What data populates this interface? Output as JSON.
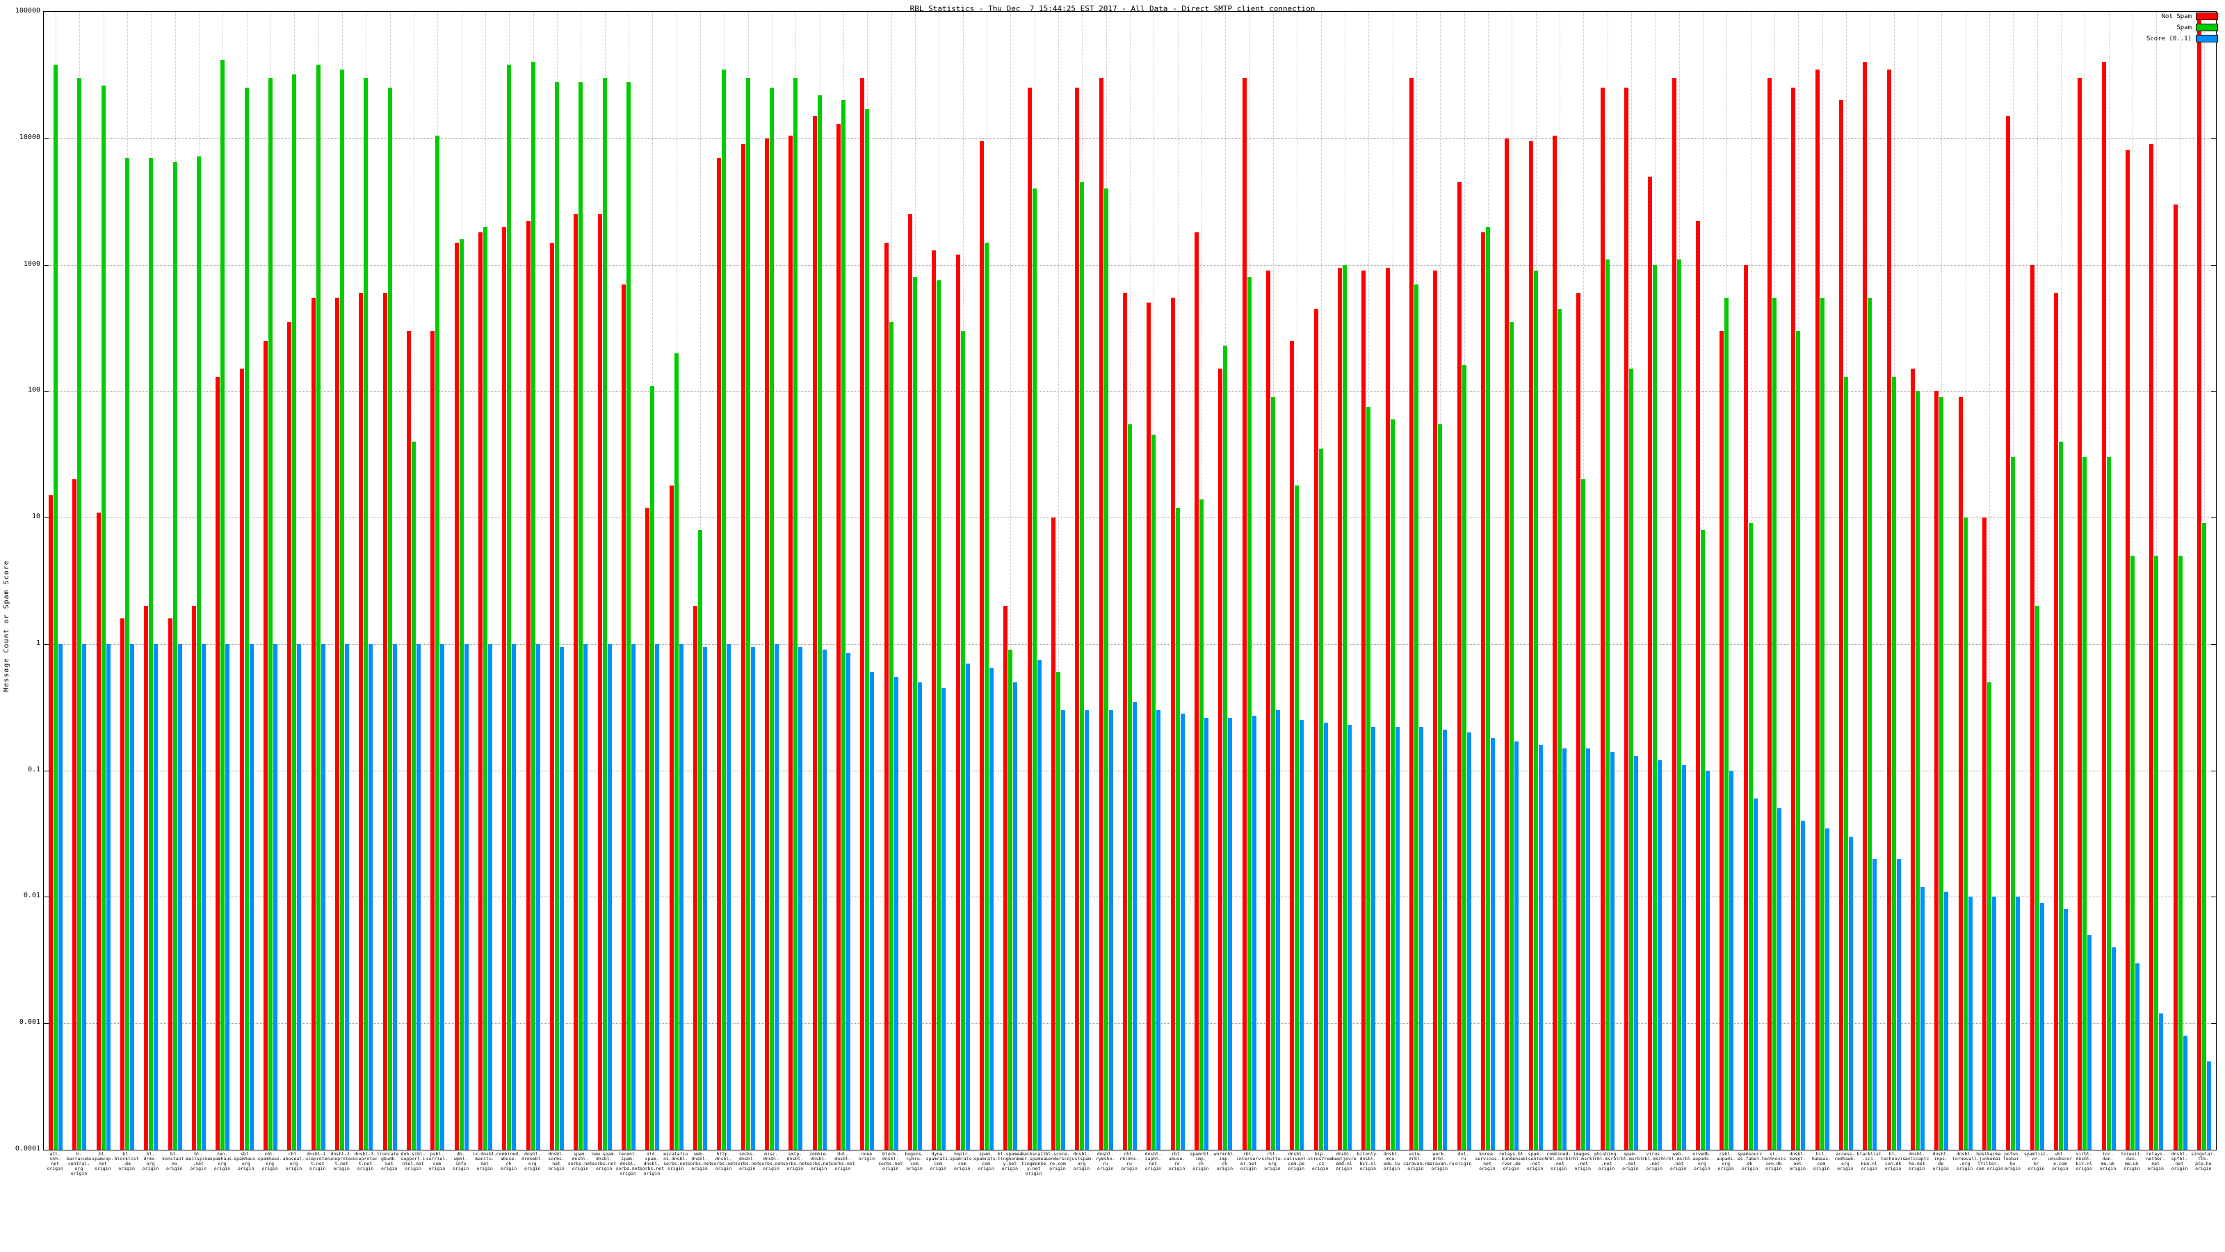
{
  "chart_data": {
    "type": "bar",
    "title": "RBL Statistics - Thu Dec  7 15:44:25 EST 2017 - All Data - Direct SMTP client connection",
    "ylabel": "Message Count or Spam Score",
    "yscale": "log",
    "ylim": [
      0.0001,
      100000
    ],
    "y_ticks": [
      "100000",
      "10000",
      "1000",
      "100",
      "10",
      "1",
      "0.1",
      "0.01",
      "0.001",
      "0.0001"
    ],
    "grid": true,
    "legend_position": "top-right",
    "colors": {
      "not_spam": "#ff0000",
      "spam": "#00cc00",
      "score": "#0090ff"
    },
    "legend": [
      {
        "label": "Not Spam",
        "color": "#ff0000"
      },
      {
        "label": "Spam",
        "color": "#00cc00"
      },
      {
        "label": "Score (0..1)",
        "color": "#0090ff"
      }
    ],
    "series_order": [
      "not_spam",
      "spam",
      "score"
    ],
    "groups": [
      {
        "label": [
          "all.",
          "s5h.",
          "net",
          "origin"
        ],
        "not_spam": 15,
        "spam": 38000,
        "score": 1
      },
      {
        "label": [
          "b.",
          "barracuda",
          "central.",
          "org",
          "origin"
        ],
        "not_spam": 20,
        "spam": 30000,
        "score": 1
      },
      {
        "label": [
          "bl.",
          "spamcop.",
          "net",
          "origin"
        ],
        "not_spam": 11,
        "spam": 26000,
        "score": 1
      },
      {
        "label": [
          "bl.",
          "blocklist",
          ".de",
          "origin"
        ],
        "not_spam": 1.6,
        "spam": 7000,
        "score": 1
      },
      {
        "label": [
          "bl.",
          "drmx.",
          "org",
          "origin"
        ],
        "not_spam": 2,
        "spam": 7000,
        "score": 1
      },
      {
        "label": [
          "bl.",
          "konstant.",
          "no",
          "origin"
        ],
        "not_spam": 1.6,
        "spam": 6500,
        "score": 1
      },
      {
        "label": [
          "bl.",
          "mailspike",
          ".net",
          "origin"
        ],
        "not_spam": 2,
        "spam": 7200,
        "score": 1
      },
      {
        "label": [
          "zen.",
          "spamhaus.",
          "org",
          "origin"
        ],
        "not_spam": 130,
        "spam": 42000,
        "score": 1
      },
      {
        "label": [
          "sbl.",
          "spamhaus.",
          "org",
          "origin"
        ],
        "not_spam": 150,
        "spam": 25000,
        "score": 1
      },
      {
        "label": [
          "xbl.",
          "spamhaus.",
          "org",
          "origin"
        ],
        "not_spam": 250,
        "spam": 30000,
        "score": 1
      },
      {
        "label": [
          "cbl.",
          "abuseat.",
          "org",
          "origin"
        ],
        "not_spam": 350,
        "spam": 32000,
        "score": 1
      },
      {
        "label": [
          "dnsbl-1.",
          "uceprotec",
          "t.net",
          "origin"
        ],
        "not_spam": 550,
        "spam": 38000,
        "score": 1
      },
      {
        "label": [
          "dnsbl-2.",
          "uceprotec",
          "t.net",
          "origin"
        ],
        "not_spam": 550,
        "spam": 35000,
        "score": 1
      },
      {
        "label": [
          "dnsbl-3.",
          "uceprotec",
          "t.net",
          "origin"
        ],
        "not_spam": 600,
        "spam": 30000,
        "score": 1
      },
      {
        "label": [
          "truncate.",
          "gbudb.",
          "net",
          "origin"
        ],
        "not_spam": 600,
        "spam": 25000,
        "score": 1
      },
      {
        "label": [
          "dob.sibl.",
          "support-i",
          "ntel.net",
          "origin"
        ],
        "not_spam": 300,
        "spam": 40,
        "score": 1
      },
      {
        "label": [
          "psbl.",
          "surriel.",
          "com",
          "origin"
        ],
        "not_spam": 300,
        "spam": 10500,
        "score": 1
      },
      {
        "label": [
          "db.",
          "wpbl.",
          "info",
          "origin"
        ],
        "not_spam": 1500,
        "spam": 1600,
        "score": 1
      },
      {
        "label": [
          "ix.dnsbl.",
          "manitu.",
          "net",
          "origin"
        ],
        "not_spam": 1800,
        "spam": 2000,
        "score": 1
      },
      {
        "label": [
          "combined.",
          "abuse.",
          "ch",
          "origin"
        ],
        "not_spam": 2000,
        "spam": 38000,
        "score": 1
      },
      {
        "label": [
          "dnsbl.",
          "dronebl.",
          "org",
          "origin"
        ],
        "not_spam": 2200,
        "spam": 40000,
        "score": 1
      },
      {
        "label": [
          "dnsbl.",
          "sorbs.",
          "net",
          "origin"
        ],
        "not_spam": 1500,
        "spam": 28000,
        "score": 0.95
      },
      {
        "label": [
          "spam.",
          "dnsbl.",
          "sorbs.net",
          "origin"
        ],
        "not_spam": 2500,
        "spam": 28000,
        "score": 1
      },
      {
        "label": [
          "new.spam.",
          "dnsbl.",
          "sorbs.net",
          "origin"
        ],
        "not_spam": 2500,
        "spam": 30000,
        "score": 1
      },
      {
        "label": [
          "recent.",
          "spam.",
          "dnsbl.",
          "sorbs.net",
          "origin"
        ],
        "not_spam": 700,
        "spam": 28000,
        "score": 1
      },
      {
        "label": [
          "old.",
          "spam.",
          "dnsbl.",
          "sorbs.net",
          "origin"
        ],
        "not_spam": 12,
        "spam": 110,
        "score": 1
      },
      {
        "label": [
          "escalatio",
          "ns.dnsbl.",
          "sorbs.net",
          "origin"
        ],
        "not_spam": 18,
        "spam": 200,
        "score": 1
      },
      {
        "label": [
          "web.",
          "dnsbl.",
          "sorbs.net",
          "origin"
        ],
        "not_spam": 2,
        "spam": 8,
        "score": 0.95
      },
      {
        "label": [
          "http.",
          "dnsbl.",
          "sorbs.net",
          "origin"
        ],
        "not_spam": 7000,
        "spam": 35000,
        "score": 1
      },
      {
        "label": [
          "socks.",
          "dnsbl.",
          "sorbs.net",
          "origin"
        ],
        "not_spam": 9000,
        "spam": 30000,
        "score": 0.95
      },
      {
        "label": [
          "misc.",
          "dnsbl.",
          "sorbs.net",
          "origin"
        ],
        "not_spam": 10000,
        "spam": 25000,
        "score": 1
      },
      {
        "label": [
          "smtp.",
          "dnsbl.",
          "sorbs.net",
          "origin"
        ],
        "not_spam": 10500,
        "spam": 30000,
        "score": 0.95
      },
      {
        "label": [
          "zombie.",
          "dnsbl.",
          "sorbs.net",
          "origin"
        ],
        "not_spam": 15000,
        "spam": 22000,
        "score": 0.9
      },
      {
        "label": [
          "dul.",
          "dnsbl.",
          "sorbs.net",
          "origin"
        ],
        "not_spam": 13000,
        "spam": 20000,
        "score": 0.85
      },
      {
        "label": [
          "none",
          "origin"
        ],
        "not_spam": 30000,
        "spam": 17000,
        "score": 0.6
      },
      {
        "label": [
          "block.",
          "dnsbl.",
          "sorbs.net",
          "origin"
        ],
        "not_spam": 1500,
        "spam": 350,
        "score": 0.55
      },
      {
        "label": [
          "bogons.",
          "cymru.",
          "com",
          "origin"
        ],
        "not_spam": 2500,
        "spam": 800,
        "score": 0.5
      },
      {
        "label": [
          "dyna.",
          "spamrats.",
          "com",
          "origin"
        ],
        "not_spam": 1300,
        "spam": 750,
        "score": 0.45
      },
      {
        "label": [
          "noptr.",
          "spamrats.",
          "com",
          "origin"
        ],
        "not_spam": 1200,
        "spam": 300,
        "score": 0.7
      },
      {
        "label": [
          "spam.",
          "spamrats.",
          "com",
          "origin"
        ],
        "not_spam": 9500,
        "spam": 1500,
        "score": 0.65
      },
      {
        "label": [
          "bl.spamea",
          "tingmonke",
          "y.net",
          "origin"
        ],
        "not_spam": 2,
        "spam": 0.9,
        "score": 0.5
      },
      {
        "label": [
          "backscatt",
          "er.spamea",
          "tingmonke",
          "y.net",
          "origin"
        ],
        "not_spam": 25000,
        "spam": 4000,
        "score": 0.75
      },
      {
        "label": [
          "bl.score.",
          "sendersco",
          "re.com",
          "origin"
        ],
        "not_spam": 10,
        "spam": 0.6,
        "score": 0.3
      },
      {
        "label": [
          "dnsbl.",
          "justspam.",
          "org",
          "origin"
        ],
        "not_spam": 25000,
        "spam": 4500,
        "score": 0.3
      },
      {
        "label": [
          "dnsbl.",
          "rymsho.",
          "ru",
          "origin"
        ],
        "not_spam": 30000,
        "spam": 4000,
        "score": 0.3
      },
      {
        "label": [
          "rbl.",
          "rbldns.",
          "ru",
          "origin"
        ],
        "not_spam": 600,
        "spam": 55,
        "score": 0.35
      },
      {
        "label": [
          "dnsbl.",
          "zapbl.",
          "net",
          "origin"
        ],
        "not_spam": 500,
        "spam": 45,
        "score": 0.3
      },
      {
        "label": [
          "rbl.",
          "abuse.",
          "ro",
          "origin"
        ],
        "not_spam": 550,
        "spam": 12,
        "score": 0.28
      },
      {
        "label": [
          "spamrbl.",
          "imp.",
          "ch",
          "origin"
        ],
        "not_spam": 1800,
        "spam": 14,
        "score": 0.26
      },
      {
        "label": [
          "wormrbl.",
          "imp.",
          "ch",
          "origin"
        ],
        "not_spam": 150,
        "spam": 230,
        "score": 0.26
      },
      {
        "label": [
          "rbl.",
          "interserv",
          "er.net",
          "origin"
        ],
        "not_spam": 30000,
        "spam": 800,
        "score": 0.27
      },
      {
        "label": [
          "rbl.",
          "schulte.",
          "org",
          "origin"
        ],
        "not_spam": 900,
        "spam": 90,
        "score": 0.3
      },
      {
        "label": [
          "dnsbl.",
          "calivent.",
          "com.pe",
          "origin"
        ],
        "not_spam": 250,
        "spam": 18,
        "score": 0.25
      },
      {
        "label": [
          "bip.",
          "virusfree",
          ".cz",
          "origin"
        ],
        "not_spam": 450,
        "spam": 35,
        "score": 0.24
      },
      {
        "label": [
          "dnsbl.",
          "beetjevre",
          "emd.nl",
          "origin"
        ],
        "not_spam": 950,
        "spam": 1000,
        "score": 0.23
      },
      {
        "label": [
          "bitonly.",
          "dnsbl.",
          "bit.nl",
          "origin"
        ],
        "not_spam": 900,
        "spam": 75,
        "score": 0.22
      },
      {
        "label": [
          "dnsbl.",
          "mcu.",
          "edu.tw",
          "origin"
        ],
        "not_spam": 950,
        "spam": 60,
        "score": 0.22
      },
      {
        "label": [
          "vote.",
          "drbl.",
          "caravan.ru",
          "origin"
        ],
        "not_spam": 30000,
        "spam": 700,
        "score": 0.22
      },
      {
        "label": [
          "work.",
          "drbl.",
          "caravan.ru",
          "origin"
        ],
        "not_spam": 900,
        "spam": 55,
        "score": 0.21
      },
      {
        "label": [
          "dul.",
          "ru",
          "origin"
        ],
        "not_spam": 4500,
        "spam": 160,
        "score": 0.2
      },
      {
        "label": [
          "korea.",
          "services.",
          "net",
          "origin"
        ],
        "not_spam": 1800,
        "spam": 2000,
        "score": 0.18
      },
      {
        "label": [
          "relays.bl",
          ".kundense",
          "rver.de",
          "origin"
        ],
        "not_spam": 10000,
        "spam": 350,
        "score": 0.17
      },
      {
        "label": [
          "spam.",
          "olsentech",
          ".net",
          "origin"
        ],
        "not_spam": 9500,
        "spam": 900,
        "score": 0.16
      },
      {
        "label": [
          "combined.",
          "rbl.msrbl",
          ".net",
          "origin"
        ],
        "not_spam": 10500,
        "spam": 450,
        "score": 0.15
      },
      {
        "label": [
          "images.",
          "rbl.msrbl",
          ".net",
          "origin"
        ],
        "not_spam": 600,
        "spam": 20,
        "score": 0.15
      },
      {
        "label": [
          "phishing.",
          "rbl.msrbl",
          ".net",
          "origin"
        ],
        "not_spam": 25000,
        "spam": 1100,
        "score": 0.14
      },
      {
        "label": [
          "spam.",
          "rbl.msrbl",
          ".net",
          "origin"
        ],
        "not_spam": 25000,
        "spam": 150,
        "score": 0.13
      },
      {
        "label": [
          "virus.",
          "rbl.msrbl",
          ".net",
          "origin"
        ],
        "not_spam": 5000,
        "spam": 1000,
        "score": 0.12
      },
      {
        "label": [
          "web.",
          "rbl.msrbl",
          ".net",
          "origin"
        ],
        "not_spam": 30000,
        "spam": 1100,
        "score": 0.11
      },
      {
        "label": [
          "orvedb.",
          "aupads.",
          "org",
          "origin"
        ],
        "not_spam": 2200,
        "spam": 8,
        "score": 0.1
      },
      {
        "label": [
          "rsbl.",
          "aupads.",
          "org",
          "origin"
        ],
        "not_spam": 300,
        "spam": 550,
        "score": 0.1
      },
      {
        "label": [
          "spamsourc",
          "es.fabel.",
          "dk",
          "origin"
        ],
        "not_spam": 1000,
        "spam": 9,
        "score": 0.06
      },
      {
        "label": [
          "st.",
          "technovis",
          "ion.dk",
          "origin"
        ],
        "not_spam": 30000,
        "spam": 550,
        "score": 0.05
      },
      {
        "label": [
          "dnsbl.",
          "kempt.",
          "net",
          "origin"
        ],
        "not_spam": 25000,
        "spam": 300,
        "score": 0.04
      },
      {
        "label": [
          "hil.",
          "habeas.",
          "com",
          "origin"
        ],
        "not_spam": 35000,
        "spam": 550,
        "score": 0.035
      },
      {
        "label": [
          "access.",
          "redhawk.",
          "org",
          "origin"
        ],
        "not_spam": 20000,
        "spam": 130,
        "score": 0.03
      },
      {
        "label": [
          "blacklist",
          ".sci.",
          "kun.nl",
          "origin"
        ],
        "not_spam": 40000,
        "spam": 550,
        "score": 0.02
      },
      {
        "label": [
          "bl.",
          "technovis",
          "ion.dk",
          "origin"
        ],
        "not_spam": 35000,
        "spam": 130,
        "score": 0.02
      },
      {
        "label": [
          "dnsbl.",
          "anticaptc",
          "ha.net",
          "origin"
        ],
        "not_spam": 150,
        "spam": 100,
        "score": 0.012
      },
      {
        "label": [
          "dnsbl.",
          "inps.",
          "de",
          "origin"
        ],
        "not_spam": 100,
        "spam": 90,
        "score": 0.011
      },
      {
        "label": [
          "dnsbl.",
          "tornevall",
          ".org",
          "origin"
        ],
        "not_spam": 90,
        "spam": 10,
        "score": 0.01
      },
      {
        "label": [
          "hostkarma",
          ".junkemai",
          "lfilter.",
          "com origin"
        ],
        "not_spam": 10,
        "spam": 0.5,
        "score": 0.01
      },
      {
        "label": [
          "pofon.",
          "foobar.",
          "hu",
          "origin"
        ],
        "not_spam": 15000,
        "spam": 30,
        "score": 0.01
      },
      {
        "label": [
          "spamlist.",
          "or.",
          "kr",
          "origin"
        ],
        "not_spam": 1000,
        "spam": 2,
        "score": 0.009
      },
      {
        "label": [
          "ubl.",
          "unsubscor",
          "e.com",
          "origin"
        ],
        "not_spam": 600,
        "spam": 40,
        "score": 0.008
      },
      {
        "label": [
          "virbl.",
          "dnsbl.",
          "bit.nl",
          "origin"
        ],
        "not_spam": 30000,
        "spam": 30,
        "score": 0.005
      },
      {
        "label": [
          "tor.",
          "dan.",
          "me.uk",
          "origin"
        ],
        "not_spam": 40000,
        "spam": 30,
        "score": 0.004
      },
      {
        "label": [
          "torexit.",
          "dan.",
          "me.uk",
          "origin"
        ],
        "not_spam": 8000,
        "spam": 5,
        "score": 0.003
      },
      {
        "label": [
          "relays.",
          "nether.",
          "net",
          "origin"
        ],
        "not_spam": 9000,
        "spam": 5,
        "score": 0.0012
      },
      {
        "label": [
          "dnsbl.",
          "spfbl.",
          "net",
          "origin"
        ],
        "not_spam": 3000,
        "spam": 5,
        "score": 0.0008
      },
      {
        "label": [
          "singular.",
          "ttk.",
          "pte.hu",
          "origin"
        ],
        "not_spam": 90000,
        "spam": 9,
        "score": 0.0005
      }
    ]
  }
}
